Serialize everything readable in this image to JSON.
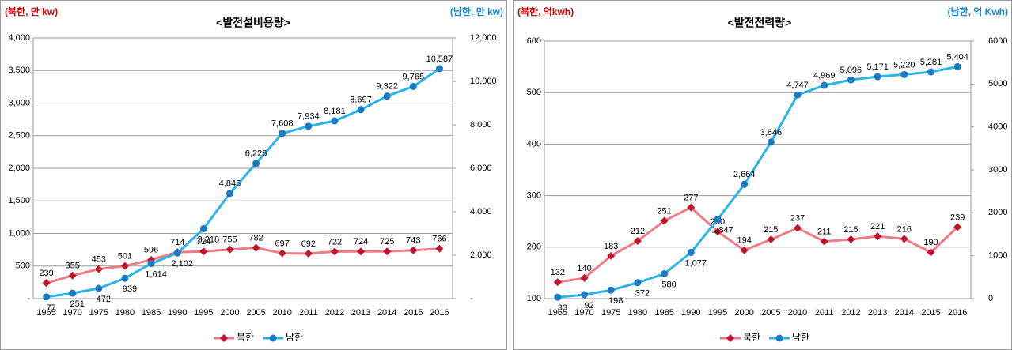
{
  "chart_data": [
    {
      "type": "line",
      "title": "<발전설비용량>",
      "y_label": "(북한, 만 kw)",
      "y2_label": "(남한, 만 kw)",
      "categories": [
        "1965",
        "1970",
        "1975",
        "1980",
        "1985",
        "1990",
        "1995",
        "2000",
        "2005",
        "2010",
        "2011",
        "2012",
        "2013",
        "2014",
        "2015",
        "2016"
      ],
      "series": [
        {
          "name": "북한",
          "color": "#ee7b85",
          "marker_color": "#c0142a",
          "values": [
            239,
            355,
            453,
            501,
            596,
            714,
            724,
            755,
            782,
            697,
            692,
            722,
            724,
            725,
            743,
            766
          ]
        },
        {
          "name": "남한",
          "color": "#2ab4e8",
          "marker_color": "#1a7ac4",
          "axis": "y2",
          "values": [
            77,
            251,
            472,
            939,
            1614,
            2102,
            3218,
            4845,
            6226,
            7608,
            7934,
            8181,
            8697,
            9322,
            9765,
            10587
          ],
          "value_labels": [
            "77",
            "251",
            "472",
            "939",
            "1,614",
            "2,102",
            "3,218",
            "4,845",
            "6,226",
            "7,608",
            "7,934",
            "8,181",
            "8,697",
            "9,322",
            "9,765",
            "10,587"
          ]
        }
      ],
      "ylim": [
        0,
        4000
      ],
      "yticks": [
        {
          "value": 0,
          "label": "-"
        },
        500,
        {
          "value": 1000,
          "label": "1,000"
        },
        {
          "value": 1500,
          "label": "1,500"
        },
        {
          "value": 2000,
          "label": "2,000"
        },
        {
          "value": 2500,
          "label": "2,500"
        },
        {
          "value": 3000,
          "label": "3,000"
        },
        {
          "value": 3500,
          "label": "3,500"
        },
        {
          "value": 4000,
          "label": "4,000"
        }
      ],
      "y2lim": [
        0,
        12000
      ],
      "y2ticks": [
        {
          "value": 0,
          "label": "-"
        },
        {
          "value": 2000,
          "label": "2,000"
        },
        {
          "value": 4000,
          "label": "4,000"
        },
        {
          "value": 6000,
          "label": "6,000"
        },
        {
          "value": 8000,
          "label": "8,000"
        },
        {
          "value": 10000,
          "label": "10,000"
        },
        {
          "value": 12000,
          "label": "12,000"
        }
      ],
      "grid": true,
      "legend": "bottom"
    },
    {
      "type": "line",
      "title": "<발전전력량>",
      "y_label": "(북한, 억kwh)",
      "y2_label": "(남한, 억 Kwh)",
      "categories": [
        "1965",
        "1970",
        "1975",
        "1980",
        "1985",
        "1990",
        "1995",
        "2000",
        "2005",
        "2010",
        "2011",
        "2012",
        "2013",
        "2014",
        "2015",
        "2016"
      ],
      "series": [
        {
          "name": "북한",
          "color": "#ee7b85",
          "marker_color": "#c0142a",
          "values": [
            132,
            140,
            183,
            212,
            251,
            277,
            230,
            194,
            215,
            237,
            211,
            215,
            221,
            216,
            190,
            239
          ]
        },
        {
          "name": "남한",
          "color": "#2ab4e8",
          "marker_color": "#1a7ac4",
          "axis": "y2",
          "values": [
            33,
            92,
            198,
            372,
            580,
            1077,
            1847,
            2664,
            3646,
            4747,
            4969,
            5096,
            5171,
            5220,
            5281,
            5404
          ],
          "value_labels": [
            "33",
            "92",
            "198",
            "372",
            "580",
            "1,077",
            "1,847",
            "2,664",
            "3,646",
            "4,747",
            "4,969",
            "5,096",
            "5,171",
            "5,220",
            "5,281",
            "5,404"
          ]
        }
      ],
      "ylim": [
        100,
        600
      ],
      "yticks": [
        100,
        200,
        300,
        400,
        500,
        600
      ],
      "y2lim": [
        0,
        6000
      ],
      "y2ticks": [
        0,
        1000,
        2000,
        3000,
        4000,
        5000,
        6000
      ],
      "grid": true,
      "legend": "bottom"
    }
  ]
}
